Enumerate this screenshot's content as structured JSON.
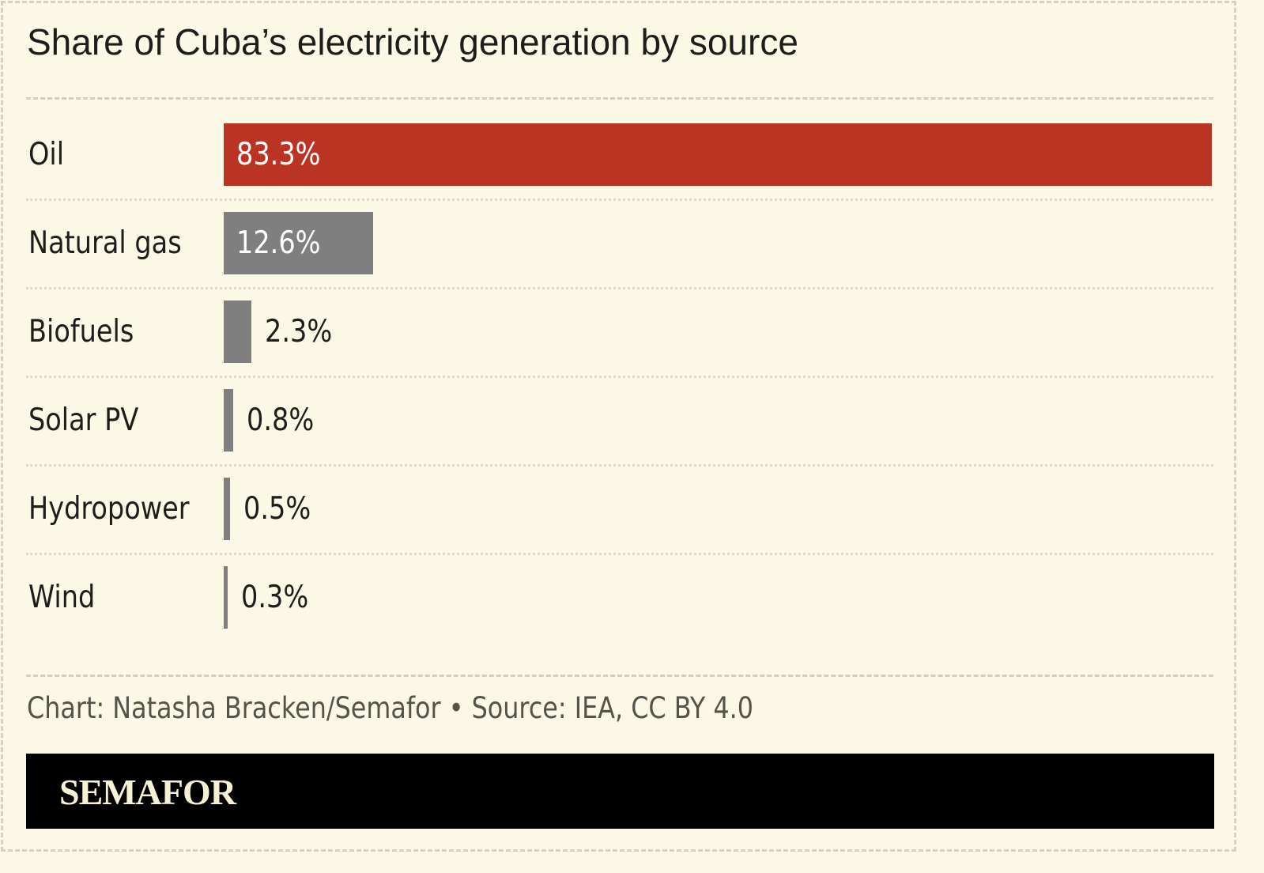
{
  "chart_data": {
    "type": "bar",
    "orientation": "horizontal",
    "title": "Share of Cuba’s electricity generation by source",
    "categories": [
      "Oil",
      "Natural gas",
      "Biofuels",
      "Solar PV",
      "Hydropower",
      "Wind"
    ],
    "values": [
      83.3,
      12.6,
      2.3,
      0.8,
      0.5,
      0.3
    ],
    "value_labels": [
      "83.3%",
      "12.6%",
      "2.3%",
      "0.8%",
      "0.5%",
      "0.3%"
    ],
    "unit": "%",
    "colors": {
      "highlight": "#bb3323",
      "default": "#7f7f7f"
    },
    "highlight_category": "Oil",
    "grid": false
  },
  "footer": {
    "credit": "Chart: Natasha Bracken/Semafor • Source: IEA, CC BY 4.0"
  },
  "brand": {
    "logo_text": "SEMAFOR"
  }
}
